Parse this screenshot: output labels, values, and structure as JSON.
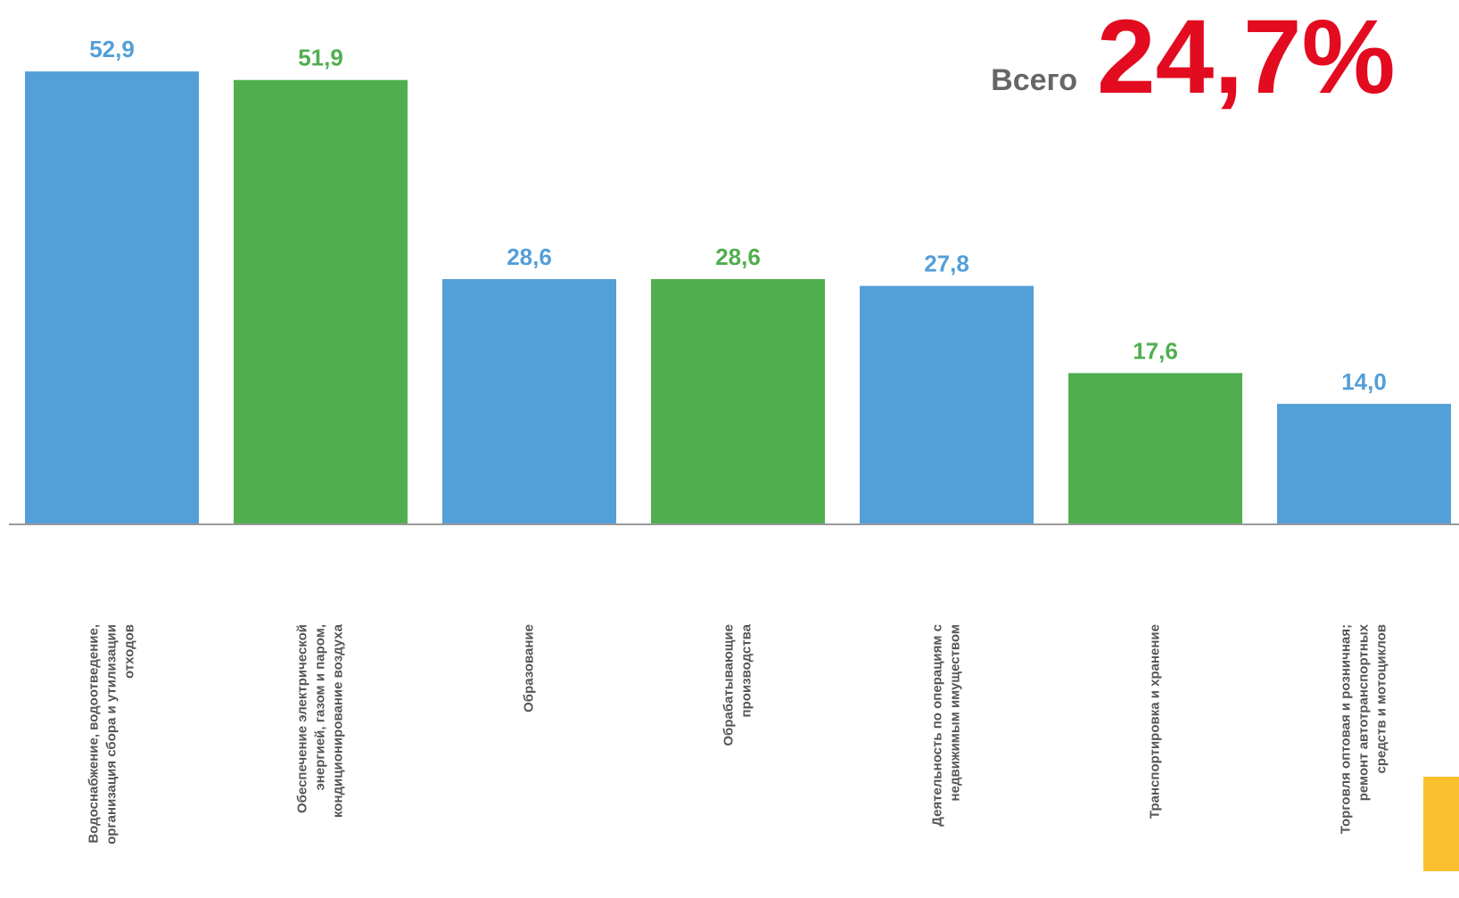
{
  "chart_data": {
    "type": "bar",
    "categories": [
      "Водоснабжение, водоотведение,\nорганизация сбора и утилизации\nотходов",
      "Обеспечение электрической\nэнергией, газом и паром,\nкондиционирование воздуха",
      "Образование",
      "Обрабатывающие\nпроизводства",
      "Деятельность по операциям с\nнедвижимым имуществом",
      "Транспортировка и хранение",
      "Торговля оптовая и розничная;\nремонт автотранспортных\nсредств  и мотоциклов"
    ],
    "values": [
      52.9,
      51.9,
      28.6,
      28.6,
      27.8,
      17.6,
      14.0
    ],
    "value_labels": [
      "52,9",
      "51,9",
      "28,6",
      "28,6",
      "27,8",
      "17,6",
      "14,0"
    ],
    "colors": [
      "#539fd8",
      "#50ae4f",
      "#539fd8",
      "#50ae4f",
      "#539fd8",
      "#50ae4f",
      "#539fd8"
    ],
    "ylim": [
      0,
      55
    ],
    "annotations": [
      "Всего",
      "24,7%"
    ]
  }
}
